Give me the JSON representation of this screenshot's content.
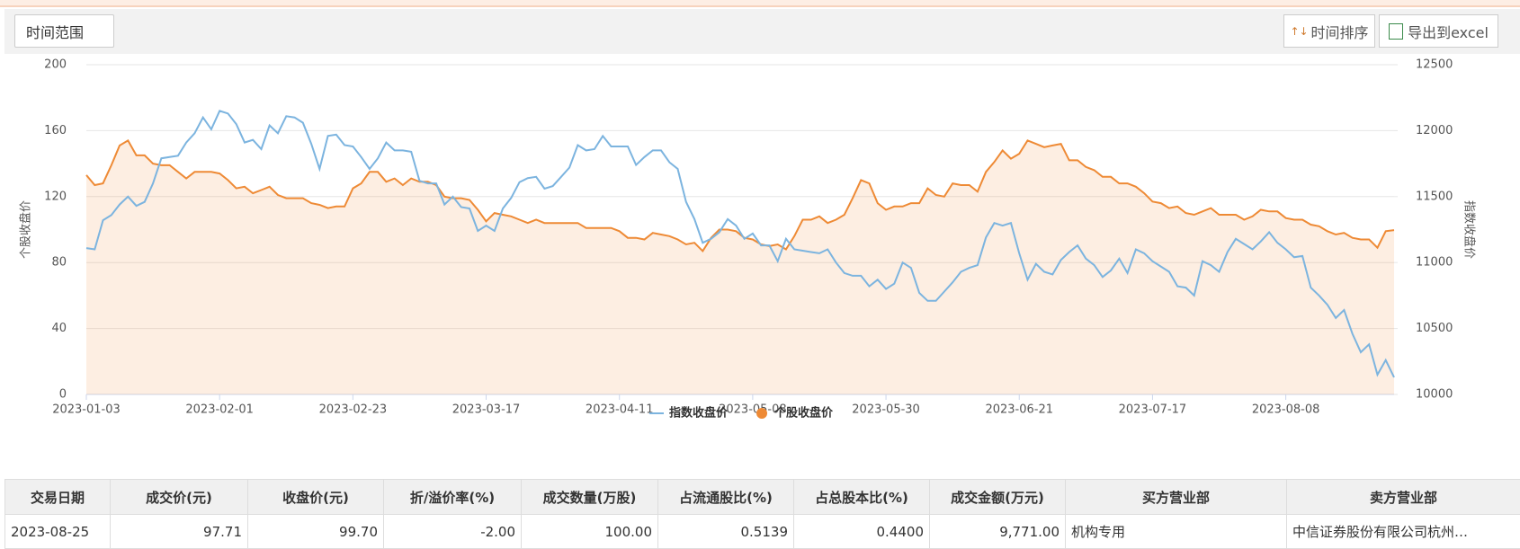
{
  "toolbar": {
    "range_label": "时间范围",
    "sort_button": "时间排序",
    "export_button": "导出到excel"
  },
  "chart_data": {
    "type": "line",
    "y_label": "个股收盘价",
    "y2_label": "指数收盘价",
    "categories": [
      "2023-01-03",
      null,
      null,
      null,
      null,
      null,
      null,
      null,
      null,
      null,
      null,
      null,
      null,
      null,
      null,
      null,
      "2023-02-01",
      null,
      null,
      null,
      null,
      null,
      null,
      null,
      null,
      null,
      null,
      null,
      null,
      null,
      null,
      null,
      "2023-02-23",
      null,
      null,
      null,
      null,
      null,
      null,
      null,
      null,
      null,
      null,
      null,
      null,
      null,
      null,
      null,
      "2023-03-17",
      null,
      null,
      null,
      null,
      null,
      null,
      null,
      null,
      null,
      null,
      null,
      null,
      null,
      null,
      null,
      "2023-04-11",
      null,
      null,
      null,
      null,
      null,
      null,
      null,
      null,
      null,
      null,
      null,
      null,
      null,
      null,
      null,
      "2023-05-08",
      null,
      null,
      null,
      null,
      null,
      null,
      null,
      null,
      null,
      null,
      null,
      null,
      null,
      null,
      null,
      "2023-05-30",
      null,
      null,
      null,
      null,
      null,
      null,
      null,
      null,
      null,
      null,
      null,
      null,
      null,
      null,
      null,
      "2023-06-21",
      null,
      null,
      null,
      null,
      null,
      null,
      null,
      null,
      null,
      null,
      null,
      null,
      null,
      null,
      null,
      "2023-07-17",
      null,
      null,
      null,
      null,
      null,
      null,
      null,
      null,
      null,
      null,
      null,
      null,
      null,
      null,
      null,
      "2023-08-08",
      null,
      null,
      null,
      null,
      null,
      null,
      null,
      null,
      null,
      null,
      null,
      null,
      null
    ],
    "ylim": [
      0,
      200
    ],
    "yticks": [
      0,
      40,
      80,
      120,
      160,
      200
    ],
    "y2lim": [
      10000,
      12500
    ],
    "y2ticks": [
      10000,
      10500,
      11000,
      11500,
      12000,
      12500
    ],
    "grid": true,
    "series": [
      {
        "name": "指数收盘价",
        "color": "#7cb4df",
        "axis": "y2",
        "area": false,
        "values": [
          11110,
          11100,
          11320,
          11360,
          11440,
          11500,
          11430,
          11460,
          11600,
          11790,
          11800,
          11810,
          11910,
          11980,
          12100,
          12010,
          12150,
          12130,
          12050,
          11910,
          11930,
          11860,
          12040,
          11980,
          12110,
          12100,
          12060,
          11900,
          11710,
          11960,
          11970,
          11890,
          11880,
          11800,
          11710,
          11790,
          11910,
          11850,
          11850,
          11840,
          11620,
          11600,
          11600,
          11440,
          11500,
          11420,
          11410,
          11240,
          11280,
          11240,
          11410,
          11490,
          11610,
          11640,
          11650,
          11560,
          11580,
          11650,
          11720,
          11890,
          11850,
          11860,
          11960,
          11880,
          11880,
          11880,
          11740,
          11800,
          11850,
          11850,
          11760,
          11710,
          11460,
          11330,
          11150,
          11180,
          11230,
          11330,
          11280,
          11180,
          11220,
          11130,
          11130,
          11010,
          11180,
          11100,
          11090,
          11080,
          11070,
          11100,
          11000,
          10920,
          10900,
          10900,
          10820,
          10870,
          10800,
          10840,
          11000,
          10960,
          10770,
          10710,
          10710,
          10780,
          10850,
          10930,
          10960,
          10980,
          11190,
          11300,
          11280,
          11300,
          11070,
          10870,
          10990,
          10930,
          10910,
          11020,
          11080,
          11130,
          11030,
          10980,
          10890,
          10940,
          11030,
          10920,
          11100,
          11070,
          11010,
          10970,
          10930,
          10820,
          10810,
          10750,
          11010,
          10980,
          10930,
          11080,
          11180,
          11140,
          11100,
          11160,
          11230,
          11150,
          11100,
          11040,
          11050,
          10810,
          10750,
          10680,
          10580,
          10640,
          10460,
          10320,
          10380,
          10150,
          10260,
          10130
        ]
      },
      {
        "name": "个股收盘价",
        "color": "#ee8a35",
        "axis": "y",
        "area": true,
        "values": [
          133,
          127,
          128,
          139,
          151,
          154,
          145,
          145,
          140,
          139,
          139,
          135,
          131,
          135,
          135,
          135,
          134,
          130,
          125,
          126,
          122,
          124,
          126,
          121,
          119,
          119,
          119,
          116,
          115,
          113,
          114,
          114,
          125,
          128,
          135,
          135,
          129,
          131,
          127,
          131,
          129,
          129,
          127,
          120,
          119,
          119,
          118,
          112,
          105,
          110,
          109,
          108,
          106,
          104,
          106,
          104,
          104,
          104,
          104,
          104,
          101,
          101,
          101,
          101,
          99,
          95,
          95,
          94,
          98,
          97,
          96,
          94,
          91,
          92,
          87,
          95,
          100,
          100,
          99,
          95,
          94,
          91,
          90,
          91,
          88,
          96,
          106,
          106,
          108,
          104,
          106,
          109,
          119,
          130,
          128,
          116,
          112,
          114,
          114,
          116,
          116,
          125,
          121,
          120,
          128,
          127,
          127,
          123,
          135,
          141,
          148,
          143,
          146,
          154,
          152,
          150,
          151,
          152,
          142,
          142,
          138,
          136,
          132,
          132,
          128,
          128,
          126,
          122,
          117,
          116,
          113,
          114,
          110,
          109,
          111,
          113,
          109,
          109,
          109,
          106,
          108,
          112,
          111,
          111,
          107,
          106,
          106,
          103,
          102,
          99,
          97,
          98,
          95,
          94,
          94,
          89,
          99,
          99.7
        ]
      }
    ]
  },
  "table": {
    "columns": [
      "交易日期",
      "成交价(元)",
      "收盘价(元)",
      "折/溢价率(%)",
      "成交数量(万股)",
      "占流通股比(%)",
      "占总股本比(%)",
      "成交金额(万元)",
      "买方营业部",
      "卖方营业部"
    ],
    "rows": [
      [
        "2023-08-25",
        "97.71",
        "99.70",
        "-2.00",
        "100.00",
        "0.5139",
        "0.4400",
        "9,771.00",
        "机构专用",
        "中信证券股份有限公司杭州…"
      ]
    ]
  }
}
